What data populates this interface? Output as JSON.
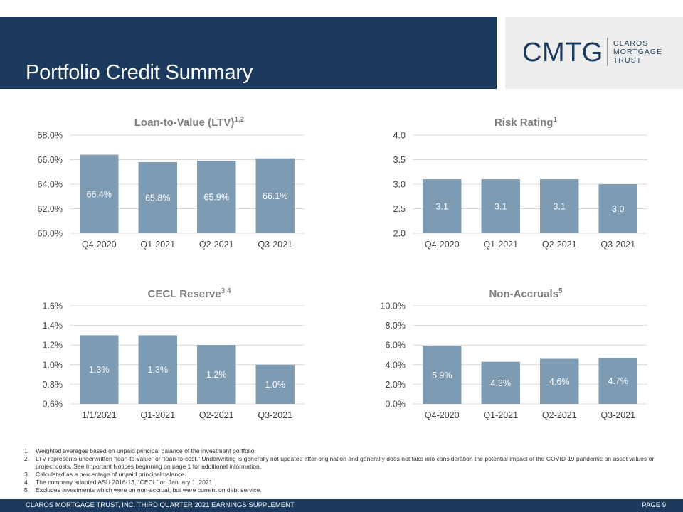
{
  "header": {
    "title": "Portfolio Credit Summary",
    "logo": {
      "main": "CMTG",
      "sub_lines": [
        "CLAROS",
        "MORTGAGE",
        "TRUST"
      ]
    }
  },
  "colors": {
    "header_bg": "#1b3a5e",
    "bar": "#7d9bb3",
    "grid": "#d9d9d9",
    "bar_label": "#ffffff",
    "chart_title": "#7f7f7f"
  },
  "chart_data": [
    {
      "type": "bar",
      "title": "Loan-to-Value (LTV)",
      "title_sup": "1,2",
      "categories": [
        "Q4-2020",
        "Q1-2021",
        "Q2-2021",
        "Q3-2021"
      ],
      "values": [
        66.4,
        65.8,
        65.9,
        66.1
      ],
      "data_labels": [
        "66.4%",
        "65.8%",
        "65.9%",
        "66.1%"
      ],
      "yticks": [
        "60.0%",
        "62.0%",
        "64.0%",
        "66.0%",
        "68.0%"
      ],
      "ylim": [
        60,
        68
      ],
      "grid": true
    },
    {
      "type": "bar",
      "title": "Risk Rating",
      "title_sup": "1",
      "categories": [
        "Q4-2020",
        "Q1-2021",
        "Q2-2021",
        "Q3-2021"
      ],
      "values": [
        3.1,
        3.1,
        3.1,
        3.0
      ],
      "data_labels": [
        "3.1",
        "3.1",
        "3.1",
        "3.0"
      ],
      "yticks": [
        "2.0",
        "2.5",
        "3.0",
        "3.5",
        "4.0"
      ],
      "ylim": [
        2.0,
        4.0
      ],
      "grid": true
    },
    {
      "type": "bar",
      "title": "CECL Reserve",
      "title_sup": "3,4",
      "categories": [
        "1/1/2021",
        "Q1-2021",
        "Q2-2021",
        "Q3-2021"
      ],
      "values": [
        1.3,
        1.3,
        1.2,
        1.0
      ],
      "data_labels": [
        "1.3%",
        "1.3%",
        "1.2%",
        "1.0%"
      ],
      "yticks": [
        "0.6%",
        "0.8%",
        "1.0%",
        "1.2%",
        "1.4%",
        "1.6%"
      ],
      "ylim": [
        0.6,
        1.6
      ],
      "grid": true
    },
    {
      "type": "bar",
      "title": "Non-Accruals",
      "title_sup": "5",
      "categories": [
        "Q4-2020",
        "Q1-2021",
        "Q2-2021",
        "Q3-2021"
      ],
      "values": [
        5.9,
        4.3,
        4.6,
        4.7
      ],
      "data_labels": [
        "5.9%",
        "4.3%",
        "4.6%",
        "4.7%"
      ],
      "yticks": [
        "0.0%",
        "2.0%",
        "4.0%",
        "6.0%",
        "8.0%",
        "10.0%"
      ],
      "ylim": [
        0,
        10
      ],
      "grid": true
    }
  ],
  "footnotes": [
    {
      "num": "1.",
      "text": "Weighted averages based on unpaid principal balance of the investment portfolio."
    },
    {
      "num": "2.",
      "text": "LTV represents underwritten “loan-to-value” or “loan-to-cost.” Underwriting is generally not updated after origination and generally does not take into consideration the potential impact of the COVID-19 pandemic on asset values or project costs. See Important Notices beginning on page 1 for additional information."
    },
    {
      "num": "3.",
      "text": "Calculated as a percentage of unpaid principal balance."
    },
    {
      "num": "4.",
      "text": "The company adopted ASU 2016-13, “CECL” on January 1, 2021."
    },
    {
      "num": "5.",
      "text": "Excludes investments which were on non-accrual, but were current on debt service."
    }
  ],
  "footer": {
    "left": "CLAROS MORTGAGE TRUST, INC. THIRD QUARTER 2021 EARNINGS SUPPLEMENT",
    "right": "PAGE 9"
  }
}
